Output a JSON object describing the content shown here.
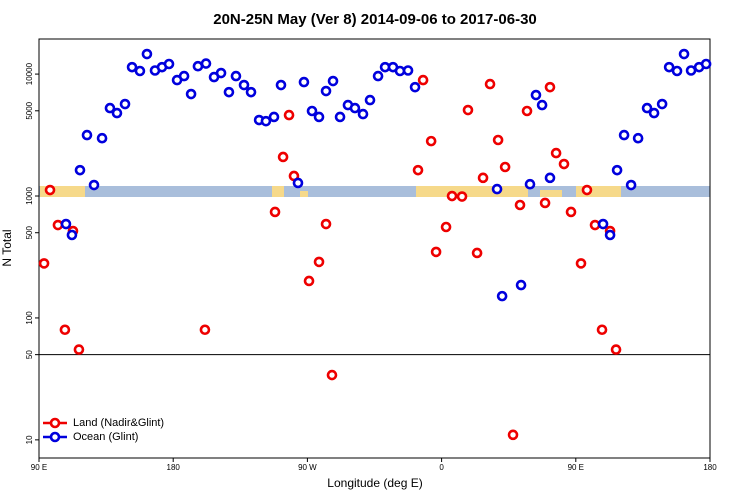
{
  "chart_data": {
    "type": "scatter",
    "title": "20N-25N May (Ver 8)   2014-09-06 to 2017-06-30",
    "x_label": "Longitude (deg E)",
    "y_label": "N Total",
    "log_y": true,
    "xlim": [
      90,
      540
    ],
    "ylim": [
      7.1,
      19400
    ],
    "xticks": [
      {
        "value": 90,
        "label": "90 E"
      },
      180,
      {
        "value": 270,
        "label": "90 W"
      },
      {
        "value": 360,
        "label": "0"
      },
      {
        "value": 450,
        "label": "90 E"
      },
      {
        "value": 540,
        "label": "180"
      }
    ],
    "yticks": [
      10,
      50,
      100,
      500,
      1000,
      5000,
      10000
    ],
    "hline": 50,
    "legend": "bottom-left",
    "series": [
      {
        "name": "Land (Nadir&Glint)",
        "color": "#ee0000",
        "x": [
          93.4,
          97.4,
          102.7,
          107.4,
          112.8,
          116.8,
          201.3,
          248.3,
          253.7,
          257.7,
          261,
          271.1,
          277.8,
          282.5,
          286.5,
          344.2,
          347.6,
          353,
          356.3,
          363,
          367,
          373.7,
          377.7,
          383.8,
          387.8,
          392.5,
          397.9,
          402.6,
          407.9,
          412.6,
          417.3,
          429.4,
          432.7,
          436.8,
          442.1,
          446.8,
          453.5,
          457.5,
          462.9,
          467.6,
          473,
          477
        ],
        "values": [
          280,
          1120,
          578,
          80,
          516,
          55,
          80,
          740,
          2090,
          4610,
          1460,
          201,
          288,
          589,
          34,
          1630,
          8930,
          2820,
          348,
          557,
          1000,
          990,
          5070,
          341,
          1410,
          8280,
          2880,
          1730,
          11,
          844,
          4980,
          877,
          7810,
          2250,
          1830,
          740,
          280,
          1120,
          578,
          80,
          516,
          55
        ]
      },
      {
        "name": "Ocean (Glint)",
        "color": "#0000dd",
        "x": [
          108.1,
          112.1,
          117.5,
          122.2,
          126.9,
          132.3,
          137.6,
          142.3,
          147.7,
          152.4,
          157.7,
          162.4,
          167.8,
          172.5,
          177.2,
          182.6,
          187.3,
          192,
          196.6,
          202,
          207.4,
          212.1,
          217.4,
          222.1,
          227.5,
          232.2,
          237.6,
          242.2,
          247.6,
          252.3,
          263.7,
          267.7,
          273.1,
          277.8,
          282.5,
          287.2,
          291.9,
          297.2,
          301.9,
          307.3,
          312,
          317.4,
          322.1,
          327.4,
          332.1,
          337.5,
          342.2,
          397.2,
          400.6,
          413.3,
          419.3,
          423.3,
          427.4,
          432.7,
          468.3,
          473,
          477.7,
          482.4,
          487.1,
          491.8,
          497.8,
          502.5,
          507.9,
          512.6,
          517.9,
          522.6,
          527.3,
          532.7,
          537.4
        ],
        "values": [
          589,
          479,
          1630,
          3160,
          1230,
          2980,
          5260,
          4790,
          5680,
          11400,
          10600,
          14600,
          10700,
          11400,
          12100,
          8930,
          9630,
          6860,
          11600,
          12200,
          9450,
          10200,
          7110,
          9630,
          8130,
          7110,
          4200,
          4110,
          4450,
          8130,
          1280,
          8600,
          4980,
          4450,
          7260,
          8770,
          4450,
          5570,
          5260,
          4700,
          6120,
          9630,
          11400,
          11400,
          10600,
          10700,
          7810,
          1140,
          151,
          186,
          1250,
          6730,
          5570,
          1410,
          589,
          479,
          1630,
          3160,
          1230,
          2980,
          5260,
          4790,
          5680,
          11400,
          10600,
          14600,
          10700,
          11400,
          12100
        ]
      }
    ]
  }
}
